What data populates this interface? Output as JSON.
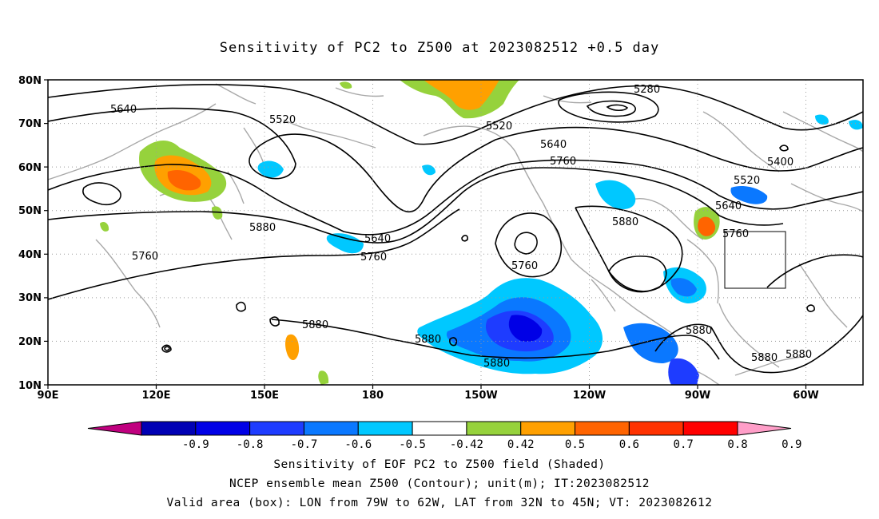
{
  "title": "Sensitivity of PC2 to Z500 at 2023082512 +0.5 day",
  "axes": {
    "lat_labels": [
      "80N",
      "70N",
      "60N",
      "50N",
      "40N",
      "30N",
      "20N",
      "10N"
    ],
    "lon_labels": [
      "90E",
      "120E",
      "150E",
      "180",
      "150W",
      "120W",
      "90W",
      "60W"
    ]
  },
  "contour_labels": [
    "5640",
    "5520",
    "5280",
    "5520",
    "5640",
    "5760",
    "5400",
    "5520",
    "5640",
    "5760",
    "5880",
    "5640",
    "5760",
    "5760",
    "5880",
    "5760",
    "5880",
    "5880",
    "5880",
    "5880",
    "5880",
    "5880"
  ],
  "colorbar": {
    "labels": [
      "-0.9",
      "-0.8",
      "-0.7",
      "-0.6",
      "-0.5",
      "-0.42",
      "0.42",
      "0.5",
      "0.6",
      "0.7",
      "0.8",
      "0.9"
    ],
    "colors": [
      "#c0007f",
      "#0000b4",
      "#0000e6",
      "#1e3cff",
      "#0a78ff",
      "#00c8ff",
      "#ffffff",
      "#96d23c",
      "#ffa000",
      "#ff6400",
      "#ff3200",
      "#ff0000",
      "#ff9ec8"
    ]
  },
  "captions": [
    "Sensitivity of EOF PC2 to Z500 field (Shaded)",
    "NCEP ensemble mean Z500 (Contour); unit(m); IT:2023082512",
    "Valid area (box): LON from 79W to 62W, LAT from 32N to 45N; VT: 2023082612"
  ]
}
